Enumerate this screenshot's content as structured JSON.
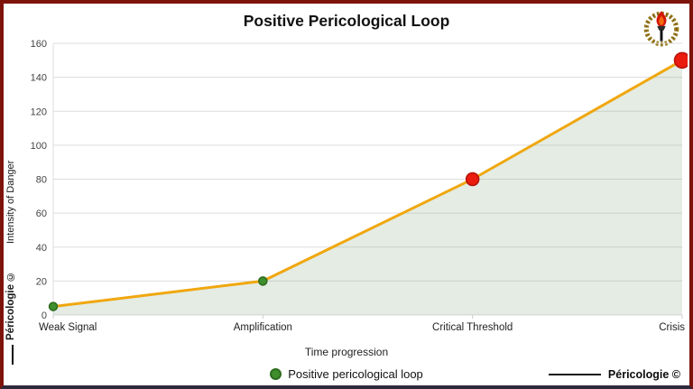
{
  "branding": {
    "left_watermark": "Péricologie ©",
    "right_watermark": "Péricologie ©",
    "logo_icon": "torch-laurel-emblem"
  },
  "chart_data": {
    "type": "area",
    "title": "Positive Pericological Loop",
    "categories": [
      "Weak Signal",
      "Amplification",
      "Critical Threshold",
      "Crisis"
    ],
    "values": [
      5,
      20,
      80,
      150
    ],
    "xlabel": "Time progression",
    "ylabel": "Intensity of Danger",
    "ylim": [
      0,
      160
    ],
    "ytick_step": 20,
    "grid": true,
    "legend_position": "bottom-center",
    "line_color": "#f0a70e",
    "fill_color": "rgba(130,168,130,0.22)",
    "axis_color": "#dddddd",
    "tick_label_color": "#444444",
    "point_colors": [
      "#3e8e2c",
      "#3e8e2c",
      "#ea1c0d",
      "#ea1c0d"
    ],
    "point_edge_colors": [
      "#2c6b1e",
      "#2c6b1e",
      "#b51208",
      "#b51208"
    ],
    "point_radii": [
      4.5,
      4.5,
      7,
      8.5
    ],
    "legend": [
      {
        "label": "Positive pericological loop",
        "marker_color": "#3e8e2c",
        "marker_edge": "#2c6b1e"
      }
    ]
  }
}
